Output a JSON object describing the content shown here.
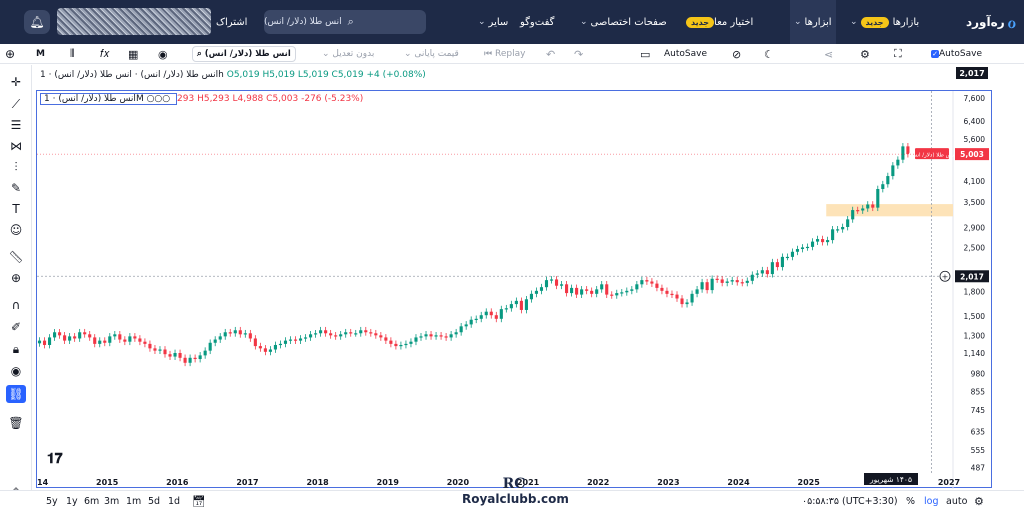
{
  "topnav": {
    "logo_text": "ره‌آورد",
    "items": [
      {
        "label": "بازارها",
        "badge": "جدید"
      },
      {
        "label": "ابزارها",
        "badge": "جدید"
      },
      {
        "label": "اختیار معامله",
        "badge": ""
      },
      {
        "label": "صفحات اختصاصی",
        "badge": "جدید"
      },
      {
        "label": "گفت‌وگو",
        "badge": ""
      },
      {
        "label": "سایر",
        "badge": ""
      }
    ],
    "search_text": "انس طلا (دلار/ انس)",
    "subscribe_label": "اشتراک",
    "bell_icon": "bell-icon"
  },
  "toolbar": {
    "symbol": "انس طلا (دلار/ انس)",
    "interval": "M",
    "adjust_label": "بدون تعدیل",
    "price_label": "قیمت پایانی",
    "replay_label": "Replay",
    "autosave_label": "AutoSave",
    "autosave_label_right": "AutoSave"
  },
  "legend_main": {
    "text": "انس طلا (دلار/ انس) · انس طلا (دلار/ انس) · 1h",
    "o": "O5,019",
    "h": "H5,019",
    "l": "L5,019",
    "c": "C5,019",
    "change": "+4 (+0.08%)"
  },
  "legend_sub": {
    "title": "انس طلا (دلار/ انس) · 1M",
    "dots": "○○○",
    "o": "293",
    "h": "H5,293",
    "l": "L4,988",
    "c": "C5,003",
    "change": "-276 (-5.23%)"
  },
  "price_tags": {
    "top": "2,017",
    "current": "5,003",
    "current_label": "انس طلا (دلار/ انس)",
    "crosshair": "2,017"
  },
  "date_tag": "۱۴۰۵ شهریور",
  "bottombar": {
    "ranges": [
      "5y",
      "1y",
      "6m",
      "3m",
      "1m",
      "5d",
      "1d"
    ],
    "time": "۰۵:۵۸:۳۵ (UTC+3:30)",
    "pct_label": "%",
    "log_label": "log",
    "auto_label": "auto"
  },
  "watermark": {
    "logo": "RC",
    "text": "Royalclubb.com"
  },
  "chart_data": {
    "type": "candlestick",
    "y_scale": "log",
    "ylim": [
      467,
      8000
    ],
    "y_ticks": [
      7600,
      6400,
      5600,
      4100,
      3500,
      2900,
      2500,
      1800,
      1500,
      1300,
      1140,
      980,
      855,
      745,
      635,
      555,
      487
    ],
    "x_ticks": [
      "2014",
      "2015",
      "2016",
      "2017",
      "2018",
      "2019",
      "2020",
      "2021",
      "2022",
      "2023",
      "2024",
      "2025",
      "2026",
      "2027"
    ],
    "x_range": [
      2014.0,
      2027.0
    ],
    "highlight_zone": {
      "y_from": 3150,
      "y_to": 3450,
      "x_from": 2025.25
    },
    "colors": {
      "up": "#089981",
      "down": "#f23645",
      "zone": "#fde3b8",
      "accent": "#2962ff"
    },
    "close": [
      1250,
      1210,
      1280,
      1330,
      1300,
      1250,
      1290,
      1270,
      1330,
      1310,
      1280,
      1220,
      1250,
      1230,
      1290,
      1310,
      1260,
      1240,
      1290,
      1270,
      1240,
      1220,
      1180,
      1160,
      1170,
      1130,
      1110,
      1140,
      1100,
      1060,
      1100,
      1090,
      1120,
      1160,
      1230,
      1260,
      1290,
      1330,
      1320,
      1350,
      1310,
      1320,
      1270,
      1200,
      1180,
      1150,
      1170,
      1210,
      1220,
      1250,
      1260,
      1250,
      1270,
      1280,
      1310,
      1320,
      1350,
      1320,
      1300,
      1290,
      1310,
      1330,
      1320,
      1320,
      1350,
      1330,
      1320,
      1300,
      1280,
      1250,
      1220,
      1200,
      1210,
      1220,
      1240,
      1280,
      1290,
      1310,
      1290,
      1300,
      1290,
      1280,
      1310,
      1330,
      1390,
      1410,
      1460,
      1470,
      1510,
      1550,
      1510,
      1470,
      1580,
      1590,
      1640,
      1680,
      1570,
      1700,
      1770,
      1810,
      1860,
      1960,
      1970,
      1880,
      1900,
      1780,
      1850,
      1760,
      1830,
      1810,
      1770,
      1830,
      1900,
      1760,
      1750,
      1780,
      1790,
      1810,
      1830,
      1900,
      1960,
      1940,
      1910,
      1850,
      1810,
      1770,
      1760,
      1710,
      1640,
      1660,
      1770,
      1830,
      1930,
      1820,
      1980,
      1970,
      1920,
      1940,
      1960,
      1930,
      1920,
      1950,
      2040,
      2060,
      2110,
      2050,
      2240,
      2160,
      2330,
      2330,
      2420,
      2470,
      2500,
      2510,
      2610,
      2660,
      2600,
      2640,
      2860,
      2860,
      2910,
      3080,
      3300,
      3290,
      3340,
      3440,
      3360,
      3860,
      4000,
      4250,
      4600,
      4800,
      5300,
      5003
    ]
  }
}
